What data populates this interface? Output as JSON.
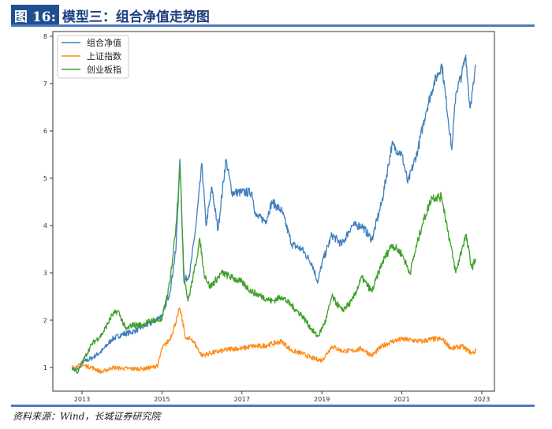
{
  "header": {
    "figure_num": "图 16:",
    "title": "模型三：组合净值走势图"
  },
  "footer": {
    "source": "资料来源：Wind，长城证券研究院"
  },
  "colors": {
    "blue": "#3f7fbf",
    "orange": "#ff8c1a",
    "green": "#3fa02a"
  },
  "chart_data": {
    "type": "line",
    "title": "模型三：组合净值走势图",
    "xlabel": "",
    "ylabel": "",
    "xlim": [
      2012.3,
      2023.3
    ],
    "ylim": [
      0.35,
      8.1
    ],
    "xticks": [
      2013,
      2015,
      2017,
      2019,
      2021,
      2023
    ],
    "yticks": [
      1,
      2,
      3,
      4,
      5,
      6,
      7,
      8
    ],
    "legend_position": "top-left",
    "series": [
      {
        "name": "组合净值",
        "color": "#3f7fbf",
        "points": [
          [
            2012.75,
            1.0
          ],
          [
            2012.9,
            0.95
          ],
          [
            2013.0,
            1.1
          ],
          [
            2013.25,
            1.2
          ],
          [
            2013.5,
            1.35
          ],
          [
            2013.75,
            1.6
          ],
          [
            2014.0,
            1.7
          ],
          [
            2014.25,
            1.75
          ],
          [
            2014.5,
            1.85
          ],
          [
            2014.75,
            1.95
          ],
          [
            2015.0,
            2.1
          ],
          [
            2015.2,
            2.6
          ],
          [
            2015.35,
            3.5
          ],
          [
            2015.45,
            5.4
          ],
          [
            2015.55,
            2.8
          ],
          [
            2015.7,
            3.0
          ],
          [
            2015.85,
            4.0
          ],
          [
            2016.0,
            5.3
          ],
          [
            2016.1,
            4.0
          ],
          [
            2016.25,
            4.8
          ],
          [
            2016.4,
            3.9
          ],
          [
            2016.6,
            5.4
          ],
          [
            2016.75,
            4.7
          ],
          [
            2017.0,
            4.7
          ],
          [
            2017.25,
            4.7
          ],
          [
            2017.35,
            4.2
          ],
          [
            2017.6,
            4.1
          ],
          [
            2017.75,
            4.5
          ],
          [
            2018.0,
            4.3
          ],
          [
            2018.25,
            3.6
          ],
          [
            2018.5,
            3.5
          ],
          [
            2018.75,
            3.2
          ],
          [
            2018.9,
            2.8
          ],
          [
            2019.0,
            3.2
          ],
          [
            2019.25,
            3.8
          ],
          [
            2019.5,
            3.6
          ],
          [
            2019.75,
            4.0
          ],
          [
            2020.0,
            4.0
          ],
          [
            2020.25,
            3.7
          ],
          [
            2020.5,
            4.5
          ],
          [
            2020.75,
            5.7
          ],
          [
            2021.0,
            5.5
          ],
          [
            2021.15,
            4.9
          ],
          [
            2021.4,
            5.6
          ],
          [
            2021.6,
            6.4
          ],
          [
            2021.8,
            7.0
          ],
          [
            2022.0,
            7.4
          ],
          [
            2022.1,
            6.7
          ],
          [
            2022.25,
            5.6
          ],
          [
            2022.35,
            6.8
          ],
          [
            2022.5,
            7.2
          ],
          [
            2022.6,
            7.6
          ],
          [
            2022.7,
            6.5
          ],
          [
            2022.8,
            7.0
          ],
          [
            2022.85,
            7.4
          ]
        ]
      },
      {
        "name": "上证指数",
        "color": "#ff8c1a",
        "points": [
          [
            2012.75,
            1.0
          ],
          [
            2013.0,
            1.05
          ],
          [
            2013.25,
            1.0
          ],
          [
            2013.5,
            0.9
          ],
          [
            2013.75,
            1.0
          ],
          [
            2014.0,
            0.98
          ],
          [
            2014.5,
            0.97
          ],
          [
            2014.75,
            1.0
          ],
          [
            2014.9,
            1.05
          ],
          [
            2015.0,
            1.4
          ],
          [
            2015.2,
            1.6
          ],
          [
            2015.4,
            2.1
          ],
          [
            2015.45,
            2.25
          ],
          [
            2015.6,
            1.6
          ],
          [
            2015.75,
            1.6
          ],
          [
            2016.0,
            1.25
          ],
          [
            2016.2,
            1.3
          ],
          [
            2016.5,
            1.35
          ],
          [
            2016.75,
            1.4
          ],
          [
            2017.0,
            1.4
          ],
          [
            2017.25,
            1.45
          ],
          [
            2017.5,
            1.45
          ],
          [
            2017.75,
            1.5
          ],
          [
            2018.0,
            1.55
          ],
          [
            2018.25,
            1.35
          ],
          [
            2018.5,
            1.3
          ],
          [
            2018.75,
            1.2
          ],
          [
            2019.0,
            1.15
          ],
          [
            2019.25,
            1.45
          ],
          [
            2019.5,
            1.35
          ],
          [
            2019.75,
            1.35
          ],
          [
            2020.0,
            1.4
          ],
          [
            2020.25,
            1.25
          ],
          [
            2020.5,
            1.45
          ],
          [
            2020.75,
            1.55
          ],
          [
            2021.0,
            1.6
          ],
          [
            2021.5,
            1.55
          ],
          [
            2021.75,
            1.6
          ],
          [
            2022.0,
            1.6
          ],
          [
            2022.25,
            1.4
          ],
          [
            2022.5,
            1.45
          ],
          [
            2022.75,
            1.3
          ],
          [
            2022.85,
            1.35
          ]
        ]
      },
      {
        "name": "创业板指",
        "color": "#3fa02a",
        "points": [
          [
            2012.75,
            1.0
          ],
          [
            2012.9,
            0.9
          ],
          [
            2013.0,
            1.1
          ],
          [
            2013.25,
            1.5
          ],
          [
            2013.5,
            1.7
          ],
          [
            2013.75,
            2.1
          ],
          [
            2013.9,
            2.2
          ],
          [
            2014.1,
            1.8
          ],
          [
            2014.25,
            1.9
          ],
          [
            2014.5,
            1.9
          ],
          [
            2014.75,
            2.0
          ],
          [
            2015.0,
            2.0
          ],
          [
            2015.2,
            2.8
          ],
          [
            2015.35,
            4.0
          ],
          [
            2015.45,
            5.3
          ],
          [
            2015.55,
            3.0
          ],
          [
            2015.65,
            2.4
          ],
          [
            2015.8,
            3.0
          ],
          [
            2015.95,
            3.7
          ],
          [
            2016.05,
            3.0
          ],
          [
            2016.2,
            2.7
          ],
          [
            2016.5,
            3.0
          ],
          [
            2016.75,
            2.9
          ],
          [
            2017.0,
            2.8
          ],
          [
            2017.25,
            2.6
          ],
          [
            2017.5,
            2.5
          ],
          [
            2017.75,
            2.4
          ],
          [
            2018.0,
            2.5
          ],
          [
            2018.25,
            2.3
          ],
          [
            2018.5,
            2.1
          ],
          [
            2018.75,
            1.8
          ],
          [
            2018.9,
            1.65
          ],
          [
            2019.1,
            2.0
          ],
          [
            2019.25,
            2.5
          ],
          [
            2019.5,
            2.2
          ],
          [
            2019.75,
            2.4
          ],
          [
            2020.0,
            2.9
          ],
          [
            2020.25,
            2.6
          ],
          [
            2020.5,
            3.2
          ],
          [
            2020.75,
            3.6
          ],
          [
            2021.0,
            3.4
          ],
          [
            2021.2,
            3.0
          ],
          [
            2021.5,
            4.0
          ],
          [
            2021.75,
            4.6
          ],
          [
            2022.0,
            4.6
          ],
          [
            2022.15,
            3.9
          ],
          [
            2022.35,
            3.0
          ],
          [
            2022.5,
            3.5
          ],
          [
            2022.6,
            3.8
          ],
          [
            2022.75,
            3.1
          ],
          [
            2022.85,
            3.3
          ]
        ]
      }
    ]
  }
}
